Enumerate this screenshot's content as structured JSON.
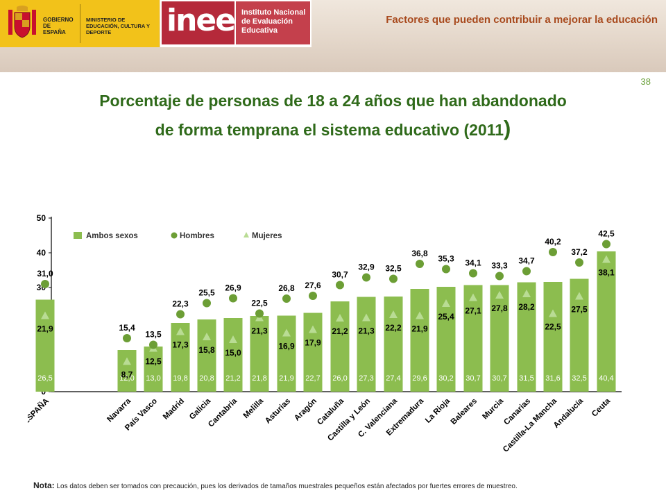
{
  "header": {
    "gobierno": "GOBIERNO DE ESPAÑA",
    "ministerio": "MINISTERIO DE EDUCACIÓN, CULTURA Y DEPORTE",
    "inee_logo": "inee",
    "inee_name": "Instituto Nacional de Evaluación Educativa",
    "section_title": "Factores que pueden contribuir a mejorar la educación"
  },
  "page_number": "38",
  "title_line1": "Porcentaje de personas de 18 a 24 años que han abandonado",
  "title_line2": "de forma temprana el sistema educativo (2011",
  "title_paren": ")",
  "note_label": "Nota:",
  "note_text": " Los datos deben ser tomados con precaución, pues los derivados de tamaños muestrales pequeños están afectados por fuertes errores de muestreo.",
  "chart_data": {
    "type": "bar",
    "categories": [
      "ESPAÑA",
      "Navarra",
      "País Vasco",
      "Madrid",
      "Galicia",
      "Cantabria",
      "Melilla",
      "Asturias",
      "Aragón",
      "Cataluña",
      "Castilla y León",
      "C. Valenciana",
      "Extremadura",
      "La Rioja",
      "Baleares",
      "Murcia",
      "Canarias",
      "Castilla-La Mancha",
      "Andalucía",
      "Ceuta"
    ],
    "series": [
      {
        "name": "Ambos sexos",
        "kind": "bar",
        "values": [
          26.5,
          12.0,
          13.0,
          19.8,
          20.8,
          21.2,
          21.8,
          21.9,
          22.7,
          26.0,
          27.3,
          27.4,
          29.6,
          30.2,
          30.7,
          30.7,
          31.5,
          31.6,
          32.5,
          40.4
        ],
        "labels": [
          "26,5",
          "12,0",
          "13,0",
          "19,8",
          "20,8",
          "21,2",
          "21,8",
          "21,9",
          "22,7",
          "26,0",
          "27,3",
          "27,4",
          "29,6",
          "30,2",
          "30,7",
          "30,7",
          "31,5",
          "31,6",
          "32,5",
          "40,4"
        ]
      },
      {
        "name": "Hombres",
        "kind": "circle",
        "values": [
          31.0,
          15.4,
          13.5,
          22.3,
          25.5,
          26.9,
          22.5,
          26.8,
          27.6,
          30.7,
          32.9,
          32.5,
          36.8,
          35.3,
          34.1,
          33.3,
          34.7,
          40.2,
          37.2,
          42.5
        ],
        "labels": [
          "31,0",
          "15,4",
          "13,5",
          "22,3",
          "25,5",
          "26,9",
          "22,5",
          "26,8",
          "27,6",
          "30,7",
          "32,9",
          "32,5",
          "36,8",
          "35,3",
          "34,1",
          "33,3",
          "34,7",
          "40,2",
          "37,2",
          "42,5"
        ]
      },
      {
        "name": "Mujeres",
        "kind": "triangle",
        "values": [
          21.9,
          8.7,
          12.5,
          17.3,
          15.8,
          15.0,
          21.3,
          16.9,
          17.9,
          21.2,
          21.3,
          22.2,
          21.9,
          25.4,
          27.1,
          27.8,
          28.2,
          22.5,
          27.5,
          38.1
        ],
        "labels": [
          "21,9",
          "8,7",
          "12,5",
          "17,3",
          "15,8",
          "15,0",
          "21,3",
          "16,9",
          "17,9",
          "21,2",
          "21,3",
          "22,2",
          "21,9",
          "25,4",
          "27,1",
          "27,8",
          "28,2",
          "22,5",
          "27,5",
          "38,1"
        ]
      }
    ],
    "yticks": [
      "0",
      "10",
      "20",
      "30",
      "40",
      "50"
    ],
    "ylim": [
      0,
      50
    ],
    "legend": "top-left",
    "grid": false,
    "colors": {
      "bar": "#8cbd4f",
      "circle": "#6c9e35",
      "triangle": "#b9dc94",
      "bar_label": "#ffffff",
      "axis": "#000000"
    }
  }
}
